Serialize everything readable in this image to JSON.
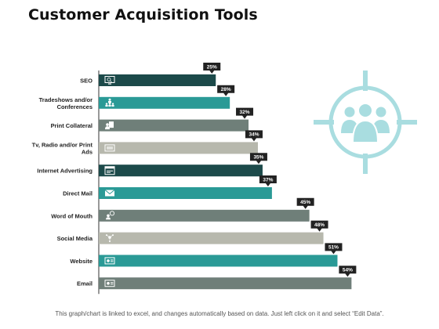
{
  "title": "Customer Acquisition Tools",
  "footer": "This graph/chart is linked to excel, and changes automatically based on data. Just left click on it and select “Edit Data”.",
  "colors": {
    "dark_teal": "#1c4a4a",
    "teal": "#2a9a96",
    "gray": "#6f7f79",
    "light_gray": "#b7b8ad",
    "label_box": "#222222",
    "target": "#a9dde0"
  },
  "chart_data": {
    "type": "bar",
    "orientation": "horizontal",
    "categories": [
      "SEO",
      "Tradeshows and/or Conferences",
      "Print Collateral",
      "Tv, Radio and/or Print Ads",
      "Internet Advertising",
      "Direct Mail",
      "Word of Mouth",
      "Social Media",
      "Website",
      "Email"
    ],
    "category_lines": [
      [
        "SEO"
      ],
      [
        "Tradeshows and/or",
        "Conferences"
      ],
      [
        "Print Collateral"
      ],
      [
        "Tv, Radio and/or Print",
        "Ads"
      ],
      [
        "Internet Advertising"
      ],
      [
        "Direct Mail"
      ],
      [
        "Word of Mouth"
      ],
      [
        "Social Media"
      ],
      [
        "Website"
      ],
      [
        "Email"
      ]
    ],
    "values": [
      25,
      28,
      32,
      34,
      35,
      37,
      45,
      48,
      51,
      54
    ],
    "data_labels": [
      "25%",
      "28%",
      "32%",
      "34%",
      "35%",
      "37%",
      "45%",
      "48%",
      "51%",
      "54%"
    ],
    "bar_colors": [
      "#1c4a4a",
      "#2a9a96",
      "#6f7f79",
      "#b7b8ad",
      "#1c4a4a",
      "#2a9a96",
      "#6f7f79",
      "#b7b8ad",
      "#2a9a96",
      "#6f7f79"
    ],
    "icons": [
      "monitor-search-icon",
      "people-audience-icon",
      "person-document-icon",
      "tv-screen-icon",
      "browser-window-icon",
      "envelope-icon",
      "person-speech-icon",
      "social-network-icon",
      "website-card-icon",
      "email-card-icon"
    ],
    "xlim": [
      0,
      60
    ],
    "grid": false,
    "legend": "none"
  }
}
